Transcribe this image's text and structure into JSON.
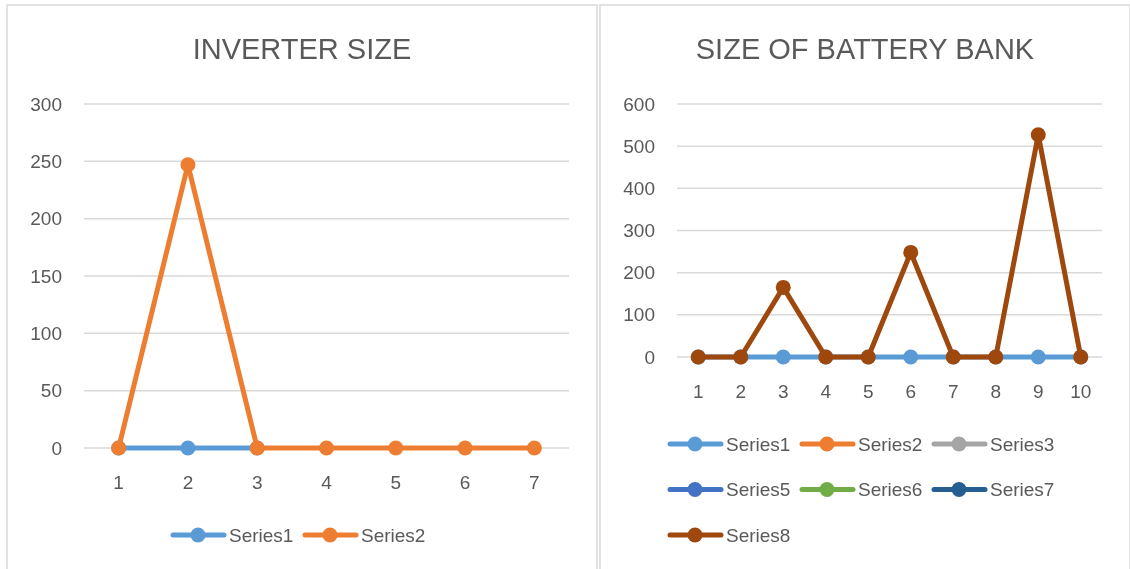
{
  "chart_data": [
    {
      "type": "line",
      "title": "INVERTER SIZE",
      "categories": [
        "1",
        "2",
        "3",
        "4",
        "5",
        "6",
        "7"
      ],
      "series": [
        {
          "name": "Series1",
          "color": "#5b9bd5",
          "values": [
            0,
            0,
            0,
            null,
            null,
            null,
            null
          ]
        },
        {
          "name": "Series2",
          "color": "#ed7d31",
          "values": [
            0,
            247,
            0,
            0,
            0,
            0,
            0
          ]
        }
      ],
      "ylim": [
        0,
        300
      ],
      "yticks": [
        0,
        50,
        100,
        150,
        200,
        250,
        300
      ],
      "grid": "y",
      "legend": "bottom",
      "marker": "circle",
      "line_style": "solid"
    },
    {
      "type": "line",
      "title": "SIZE OF BATTERY BANK",
      "categories": [
        "1",
        "2",
        "3",
        "4",
        "5",
        "6",
        "7",
        "8",
        "9",
        "10"
      ],
      "series": [
        {
          "name": "Series1",
          "color": "#5b9bd5",
          "values": [
            0,
            0,
            0,
            0,
            0,
            0,
            0,
            0,
            0,
            0
          ]
        },
        {
          "name": "Series2",
          "color": "#ed7d31",
          "values": [
            null,
            null,
            null,
            null,
            null,
            null,
            null,
            null,
            null,
            null
          ]
        },
        {
          "name": "Series3",
          "color": "#a5a5a5",
          "values": [
            null,
            null,
            null,
            null,
            null,
            null,
            null,
            null,
            null,
            null
          ]
        },
        {
          "name": "Series5",
          "color": "#4472c4",
          "values": [
            null,
            null,
            null,
            null,
            null,
            null,
            null,
            null,
            null,
            null
          ]
        },
        {
          "name": "Series6",
          "color": "#70ad47",
          "values": [
            null,
            null,
            null,
            null,
            null,
            null,
            null,
            null,
            null,
            null
          ]
        },
        {
          "name": "Series7",
          "color": "#255e91",
          "values": [
            null,
            null,
            null,
            null,
            null,
            null,
            null,
            null,
            null,
            null
          ]
        },
        {
          "name": "Series8",
          "color": "#9e480e",
          "values": [
            0,
            0,
            165,
            0,
            0,
            248,
            0,
            0,
            527,
            0
          ]
        }
      ],
      "ylim": [
        0,
        600
      ],
      "yticks": [
        0,
        100,
        200,
        300,
        400,
        500,
        600
      ],
      "grid": "y",
      "legend": "bottom",
      "marker": "circle",
      "line_style": "solid"
    }
  ]
}
